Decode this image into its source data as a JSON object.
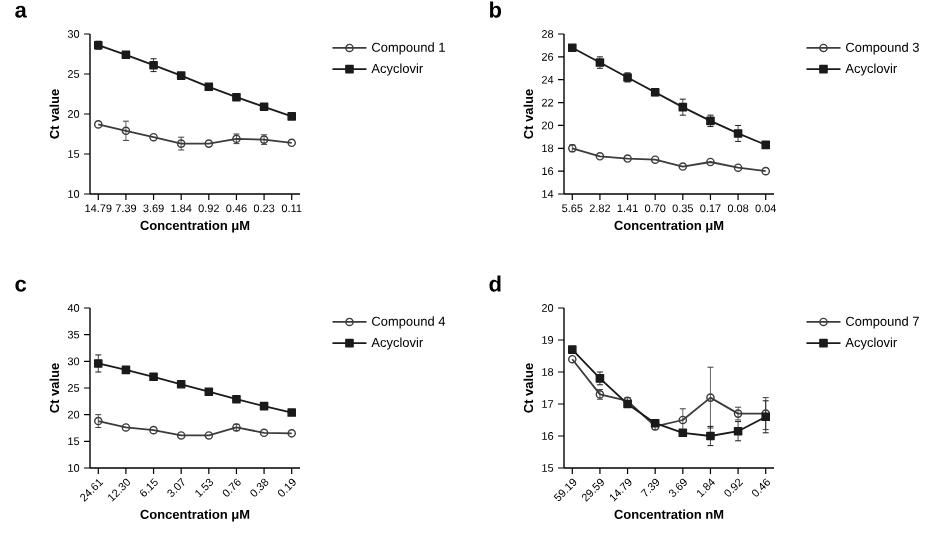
{
  "chart_data": [
    {
      "type": "line",
      "title": "a",
      "xlabel": "Concentration μM",
      "ylabel": "Ct value",
      "categories": [
        "14.79",
        "7.39",
        "3.69",
        "1.84",
        "0.92",
        "0.46",
        "0.23",
        "0.11"
      ],
      "ylim": [
        10,
        30
      ],
      "yticks": [
        10,
        15,
        20,
        25,
        30
      ],
      "grid": false,
      "legend": "right",
      "series": [
        {
          "name": "Compound 1",
          "color": "#3c3c3c",
          "marker": "circle",
          "values": [
            18.7,
            17.9,
            17.1,
            16.3,
            16.3,
            16.9,
            16.8,
            16.4
          ],
          "errors": [
            null,
            1.2,
            null,
            0.8,
            null,
            0.6,
            0.6,
            null
          ]
        },
        {
          "name": "Acyclovir",
          "color": "#1a1a1a",
          "marker": "square",
          "values": [
            28.6,
            27.4,
            26.1,
            24.8,
            23.4,
            22.1,
            20.9,
            19.7
          ],
          "errors": [
            0.5,
            null,
            0.8,
            null,
            null,
            null,
            null,
            null
          ]
        }
      ]
    },
    {
      "type": "line",
      "title": "b",
      "xlabel": "Concentration μM",
      "ylabel": "Ct value",
      "categories": [
        "5.65",
        "2.82",
        "1.41",
        "0.70",
        "0.35",
        "0.17",
        "0.08",
        "0.04"
      ],
      "ylim": [
        14,
        28
      ],
      "yticks": [
        14,
        16,
        18,
        20,
        22,
        24,
        26,
        28
      ],
      "grid": false,
      "legend": "right",
      "series": [
        {
          "name": "Compound 3",
          "color": "#3c3c3c",
          "marker": "circle",
          "values": [
            18.0,
            17.3,
            17.1,
            17.0,
            16.4,
            16.8,
            16.3,
            16.0
          ],
          "errors": [
            0.3,
            null,
            null,
            null,
            null,
            null,
            null,
            null
          ]
        },
        {
          "name": "Acyclovir",
          "color": "#1a1a1a",
          "marker": "square",
          "values": [
            26.8,
            25.5,
            24.2,
            22.9,
            21.6,
            20.4,
            19.3,
            18.3
          ],
          "errors": [
            null,
            0.5,
            0.4,
            0.3,
            0.7,
            0.5,
            0.7,
            null
          ]
        }
      ]
    },
    {
      "type": "line",
      "title": "c",
      "xlabel": "Concentration μM",
      "ylabel": "Ct value",
      "categories": [
        "24.61",
        "12.30",
        "6.15",
        "3.07",
        "1.53",
        "0.76",
        "0.38",
        "0.19"
      ],
      "ylim": [
        10,
        40
      ],
      "yticks": [
        10,
        15,
        20,
        25,
        30,
        35,
        40
      ],
      "grid": false,
      "legend": "right",
      "series": [
        {
          "name": "Compound 4",
          "color": "#3c3c3c",
          "marker": "circle",
          "values": [
            18.8,
            17.6,
            17.1,
            16.1,
            16.1,
            17.6,
            16.6,
            16.5
          ],
          "errors": [
            1.2,
            null,
            null,
            null,
            null,
            0.6,
            null,
            null
          ]
        },
        {
          "name": "Acyclovir",
          "color": "#1a1a1a",
          "marker": "square",
          "values": [
            29.6,
            28.4,
            27.1,
            25.7,
            24.3,
            22.9,
            21.6,
            20.4
          ],
          "errors": [
            1.6,
            null,
            null,
            null,
            null,
            null,
            null,
            null
          ]
        }
      ]
    },
    {
      "type": "line",
      "title": "d",
      "xlabel": "Concentration nM",
      "ylabel": "Ct value",
      "categories": [
        "59.19",
        "29.59",
        "14.79",
        "7.39",
        "3.69",
        "1.84",
        "0.92",
        "0.46"
      ],
      "ylim": [
        15,
        20
      ],
      "yticks": [
        15,
        16,
        17,
        18,
        19,
        20
      ],
      "grid": false,
      "legend": "right",
      "series": [
        {
          "name": "Compound 7",
          "color": "#3c3c3c",
          "marker": "circle",
          "values": [
            18.4,
            17.3,
            17.1,
            16.3,
            16.5,
            17.2,
            16.7,
            16.7
          ],
          "errors": [
            null,
            0.15,
            0.1,
            0.1,
            0.35,
            0.95,
            0.2,
            0.5
          ]
        },
        {
          "name": "Acyclovir",
          "color": "#1a1a1a",
          "marker": "square",
          "values": [
            18.7,
            17.8,
            17.0,
            16.4,
            16.1,
            16.0,
            16.15,
            16.6
          ],
          "errors": [
            0.1,
            0.2,
            null,
            null,
            0.1,
            0.3,
            0.3,
            0.5
          ]
        }
      ]
    }
  ]
}
